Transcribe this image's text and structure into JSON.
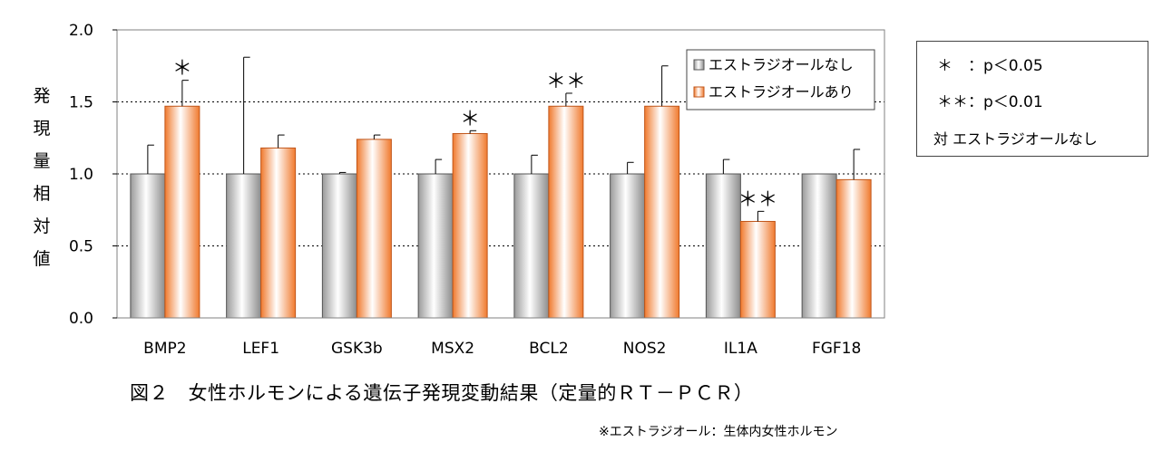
{
  "chart_data": {
    "type": "bar",
    "categories": [
      "BMP2",
      "LEF1",
      "GSK3b",
      "MSX2",
      "BCL2",
      "NOS2",
      "IL1A",
      "FGF18"
    ],
    "series": [
      {
        "name": "エストラジオールなし",
        "values": [
          1.0,
          1.0,
          1.0,
          1.0,
          1.0,
          1.0,
          1.0,
          1.0
        ],
        "errors": [
          0.2,
          0.81,
          0.01,
          0.1,
          0.13,
          0.08,
          0.1,
          0.0
        ],
        "color": "#bfbfbf"
      },
      {
        "name": "エストラジオールあり",
        "values": [
          1.47,
          1.18,
          1.24,
          1.28,
          1.47,
          1.47,
          0.67,
          0.96
        ],
        "errors": [
          0.18,
          0.09,
          0.03,
          0.02,
          0.09,
          0.28,
          0.07,
          0.21
        ],
        "color": "#ffb27a"
      }
    ],
    "significance": [
      "＊",
      "",
      "",
      "＊",
      "＊＊",
      "",
      "＊＊",
      ""
    ],
    "ylabel": "発現量相対値",
    "ylim": [
      0,
      2.0
    ],
    "yticks": [
      "0.0",
      "0.5",
      "1.0",
      "1.5",
      "2.0"
    ],
    "grid": "dotted horizontal",
    "legend_position": "top-right"
  },
  "significance_legend": {
    "line1": "＊　：p＜0.05",
    "line2": "＊＊：p＜0.01",
    "line3": "対 エストラジオールなし"
  },
  "caption": "図２　女性ホルモンによる遺伝子発現変動結果（定量的ＲＴ－ＰＣＲ）",
  "footnote": "※エストラジオール：生体内女性ホルモン"
}
